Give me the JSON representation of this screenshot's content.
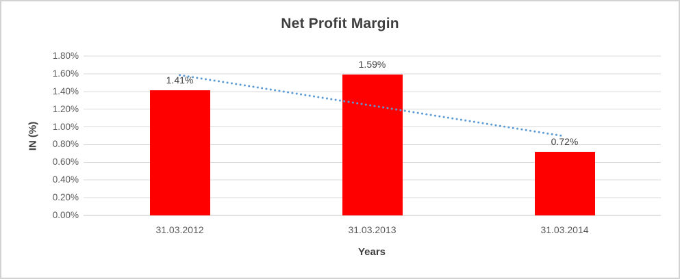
{
  "chart_data": {
    "type": "bar",
    "title": "Net Profit Margin",
    "xlabel": "Years",
    "ylabel": "IN (%)",
    "categories": [
      "31.03.2012",
      "31.03.2013",
      "31.03.2014"
    ],
    "values": [
      1.41,
      1.59,
      0.72
    ],
    "data_labels": [
      "1.41%",
      "1.59%",
      "0.72%"
    ],
    "ylim": [
      0,
      1.8
    ],
    "ytick_step": 0.2,
    "ytick_labels": [
      "0.00%",
      "0.20%",
      "0.40%",
      "0.60%",
      "0.80%",
      "1.00%",
      "1.20%",
      "1.40%",
      "1.60%",
      "1.80%"
    ],
    "grid": true,
    "legend": "none",
    "bar_color": "#ff0000",
    "trendline": {
      "type": "linear",
      "style": "dotted",
      "color": "#5b9bd5",
      "fitted_values": [
        1.585,
        1.24,
        0.895
      ]
    },
    "colors": {
      "title_text": "#3f3f3f",
      "axis_title_text": "#3f3f3f",
      "tick_label_text": "#595959",
      "data_label_text": "#404040",
      "gridline": "#d9d9d9",
      "baseline": "#c6c6c6",
      "frame_border": "#d2d2d2",
      "background": "#ffffff"
    }
  }
}
